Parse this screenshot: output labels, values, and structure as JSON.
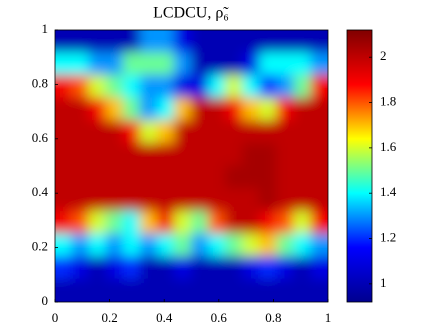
{
  "chart_data": {
    "type": "heatmap",
    "title": "LCDCU, ρ̃₆",
    "xlim": [
      0,
      1
    ],
    "ylim": [
      0,
      1
    ],
    "xticks": [
      0,
      0.2,
      0.4,
      0.6,
      0.8,
      1
    ],
    "yticks": [
      0,
      0.2,
      0.4,
      0.6,
      0.8,
      1
    ],
    "clim": [
      0.92,
      2.12
    ],
    "colorbar_ticks": [
      1,
      1.2,
      1.4,
      1.6,
      1.8,
      2
    ],
    "colormap": [
      "#00008f",
      "#0000ff",
      "#00ffff",
      "#ffff00",
      "#ff0000",
      "#800000"
    ],
    "z": [
      [
        1.0,
        1.0,
        1.0,
        1.0,
        1.0,
        1.3,
        1.3,
        1.1,
        1.0,
        1.0,
        1.0,
        1.0,
        1.0,
        1.0,
        1.0,
        1.0
      ],
      [
        1.4,
        1.4,
        1.3,
        1.3,
        1.5,
        1.5,
        1.5,
        1.3,
        1.0,
        1.0,
        1.0,
        1.1,
        1.4,
        1.4,
        1.4,
        1.3
      ],
      [
        1.9,
        1.8,
        1.6,
        1.5,
        1.4,
        1.3,
        1.3,
        1.1,
        1.1,
        1.4,
        1.6,
        1.4,
        1.2,
        1.3,
        1.5,
        1.9
      ],
      [
        2.0,
        2.0,
        1.9,
        1.7,
        1.5,
        1.3,
        1.4,
        1.7,
        2.0,
        2.0,
        1.9,
        1.7,
        1.6,
        1.9,
        2.0,
        2.0
      ],
      [
        2.0,
        2.0,
        2.0,
        2.0,
        1.9,
        1.6,
        1.7,
        2.0,
        2.0,
        2.0,
        2.0,
        2.0,
        2.0,
        2.0,
        2.0,
        2.0
      ],
      [
        2.0,
        2.0,
        2.0,
        2.0,
        2.0,
        2.0,
        2.0,
        2.0,
        2.0,
        2.0,
        2.0,
        2.05,
        2.05,
        2.0,
        2.0,
        2.0
      ],
      [
        2.0,
        2.0,
        2.0,
        2.0,
        2.0,
        2.0,
        2.0,
        2.0,
        2.0,
        2.0,
        2.05,
        2.05,
        2.05,
        2.0,
        2.0,
        2.0
      ],
      [
        2.0,
        2.0,
        2.0,
        2.0,
        2.0,
        2.0,
        2.0,
        2.0,
        2.0,
        2.0,
        2.0,
        2.0,
        2.05,
        2.0,
        2.0,
        2.0
      ],
      [
        1.9,
        1.8,
        1.6,
        1.5,
        1.4,
        1.7,
        1.9,
        1.6,
        1.5,
        1.8,
        2.0,
        2.0,
        1.9,
        1.8,
        1.6,
        1.9
      ],
      [
        1.4,
        1.3,
        1.4,
        1.3,
        1.4,
        1.3,
        1.4,
        1.5,
        1.3,
        1.4,
        1.5,
        1.6,
        1.7,
        1.5,
        1.4,
        1.3
      ],
      [
        1.2,
        1.1,
        1.0,
        1.1,
        1.2,
        1.0,
        1.0,
        1.1,
        1.0,
        1.0,
        1.0,
        1.1,
        1.2,
        1.1,
        1.0,
        1.1
      ],
      [
        1.0,
        1.0,
        1.0,
        1.0,
        1.0,
        1.0,
        1.0,
        1.0,
        1.0,
        1.0,
        1.0,
        1.0,
        1.0,
        1.0,
        1.0,
        1.0
      ]
    ]
  }
}
